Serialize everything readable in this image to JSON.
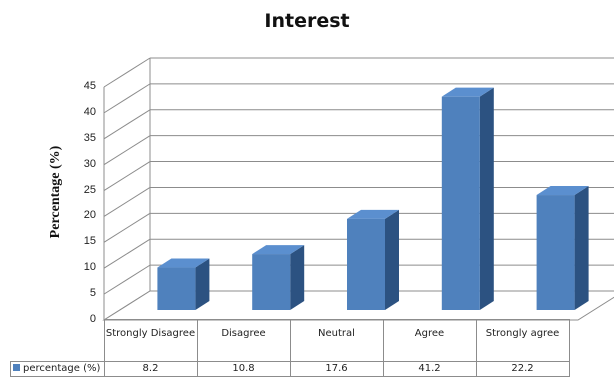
{
  "chart_data": {
    "type": "bar",
    "title": "Interest",
    "ylabel": "Percentage (%)",
    "ylim": [
      0,
      45
    ],
    "yticks": [
      0,
      5,
      10,
      15,
      20,
      25,
      30,
      35,
      40,
      45
    ],
    "grid": true,
    "three_d": true,
    "categories": [
      "Strongly Disagree",
      "Disagree",
      "Neutral",
      "Agree",
      "Strongly agree"
    ],
    "series": [
      {
        "name": "percentage (%)",
        "values": [
          8.2,
          10.8,
          17.6,
          41.2,
          22.2
        ]
      }
    ],
    "data_table_values": [
      "8.2",
      "10.8",
      "17.6",
      "41.2",
      "22.2"
    ],
    "colors": {
      "bar_front": "#4f81bd",
      "bar_top": "#5b8fcf",
      "bar_side": "#2c5281",
      "grid": "#8c8c8c"
    }
  }
}
